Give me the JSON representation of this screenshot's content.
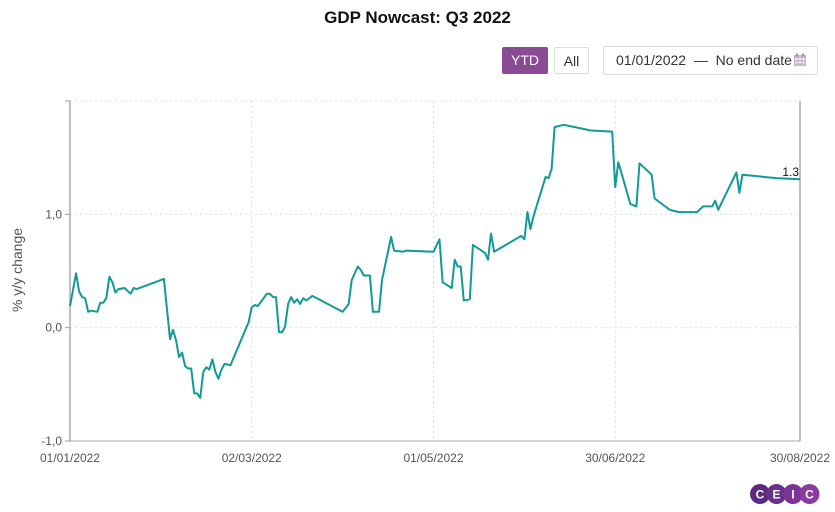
{
  "chart_data": {
    "type": "line",
    "title": "GDP Nowcast: Q3 2022",
    "ylabel": "% y/y change",
    "xlabel": "",
    "ylim": [
      -1,
      2
    ],
    "xlim": [
      "2022-01-01",
      "2022-08-30"
    ],
    "x_ticks": [
      "01/01/2022",
      "02/03/2022",
      "01/05/2022",
      "30/06/2022",
      "30/08/2022"
    ],
    "x_tick_dates": [
      "2022-01-01",
      "2022-03-02",
      "2022-05-01",
      "2022-06-30",
      "2022-08-30"
    ],
    "y_ticks": [
      {
        "value": -1,
        "label": "-1,0"
      },
      {
        "value": 0,
        "label": "0,0"
      },
      {
        "value": 1,
        "label": "1,0"
      }
    ],
    "grid": true,
    "line_color": "#129a94",
    "last_value_label": "1.3",
    "series": [
      {
        "points": [
          [
            "2022-01-01",
            0.19
          ],
          [
            "2022-01-03",
            0.48
          ],
          [
            "2022-01-04",
            0.32
          ],
          [
            "2022-01-05",
            0.27
          ],
          [
            "2022-01-06",
            0.26
          ],
          [
            "2022-01-07",
            0.14
          ],
          [
            "2022-01-08",
            0.15
          ],
          [
            "2022-01-10",
            0.14
          ],
          [
            "2022-01-11",
            0.22
          ],
          [
            "2022-01-12",
            0.22
          ],
          [
            "2022-01-13",
            0.26
          ],
          [
            "2022-01-14",
            0.45
          ],
          [
            "2022-01-15",
            0.4
          ],
          [
            "2022-01-16",
            0.31
          ],
          [
            "2022-01-17",
            0.34
          ],
          [
            "2022-01-19",
            0.35
          ],
          [
            "2022-01-21",
            0.3
          ],
          [
            "2022-01-22",
            0.35
          ],
          [
            "2022-01-23",
            0.34
          ],
          [
            "2022-02-01",
            0.43
          ],
          [
            "2022-02-03",
            -0.1
          ],
          [
            "2022-02-04",
            -0.02
          ],
          [
            "2022-02-05",
            -0.11
          ],
          [
            "2022-02-06",
            -0.26
          ],
          [
            "2022-02-07",
            -0.22
          ],
          [
            "2022-02-08",
            -0.34
          ],
          [
            "2022-02-09",
            -0.36
          ],
          [
            "2022-02-10",
            -0.36
          ],
          [
            "2022-02-11",
            -0.58
          ],
          [
            "2022-02-12",
            -0.58
          ],
          [
            "2022-02-13",
            -0.62
          ],
          [
            "2022-02-14",
            -0.39
          ],
          [
            "2022-02-15",
            -0.35
          ],
          [
            "2022-02-16",
            -0.37
          ],
          [
            "2022-02-17",
            -0.28
          ],
          [
            "2022-02-18",
            -0.39
          ],
          [
            "2022-02-19",
            -0.45
          ],
          [
            "2022-02-20",
            -0.37
          ],
          [
            "2022-02-21",
            -0.32
          ],
          [
            "2022-02-23",
            -0.33
          ],
          [
            "2022-03-01",
            0.05
          ],
          [
            "2022-03-02",
            0.18
          ],
          [
            "2022-03-03",
            0.2
          ],
          [
            "2022-03-04",
            0.19
          ],
          [
            "2022-03-07",
            0.3
          ],
          [
            "2022-03-08",
            0.3
          ],
          [
            "2022-03-09",
            0.27
          ],
          [
            "2022-03-10",
            0.27
          ],
          [
            "2022-03-11",
            -0.04
          ],
          [
            "2022-03-12",
            -0.04
          ],
          [
            "2022-03-13",
            0.01
          ],
          [
            "2022-03-14",
            0.21
          ],
          [
            "2022-03-15",
            0.27
          ],
          [
            "2022-03-16",
            0.22
          ],
          [
            "2022-03-17",
            0.25
          ],
          [
            "2022-03-18",
            0.21
          ],
          [
            "2022-03-19",
            0.26
          ],
          [
            "2022-03-20",
            0.24
          ],
          [
            "2022-03-22",
            0.28
          ],
          [
            "2022-04-01",
            0.14
          ],
          [
            "2022-04-03",
            0.21
          ],
          [
            "2022-04-04",
            0.42
          ],
          [
            "2022-04-06",
            0.54
          ],
          [
            "2022-04-07",
            0.51
          ],
          [
            "2022-04-08",
            0.46
          ],
          [
            "2022-04-10",
            0.46
          ],
          [
            "2022-04-11",
            0.14
          ],
          [
            "2022-04-13",
            0.14
          ],
          [
            "2022-04-14",
            0.42
          ],
          [
            "2022-04-17",
            0.8
          ],
          [
            "2022-04-18",
            0.68
          ],
          [
            "2022-04-21",
            0.67
          ],
          [
            "2022-04-22",
            0.68
          ],
          [
            "2022-05-01",
            0.67
          ],
          [
            "2022-05-03",
            0.78
          ],
          [
            "2022-05-04",
            0.4
          ],
          [
            "2022-05-07",
            0.35
          ],
          [
            "2022-05-08",
            0.6
          ],
          [
            "2022-05-09",
            0.54
          ],
          [
            "2022-05-10",
            0.54
          ],
          [
            "2022-05-11",
            0.24
          ],
          [
            "2022-05-13",
            0.25
          ],
          [
            "2022-05-14",
            0.73
          ],
          [
            "2022-05-18",
            0.66
          ],
          [
            "2022-05-19",
            0.6
          ],
          [
            "2022-05-20",
            0.83
          ],
          [
            "2022-05-21",
            0.67
          ],
          [
            "2022-05-30",
            0.81
          ],
          [
            "2022-05-31",
            0.78
          ],
          [
            "2022-06-01",
            1.02
          ],
          [
            "2022-06-02",
            0.87
          ],
          [
            "2022-06-03",
            0.98
          ],
          [
            "2022-06-07",
            1.33
          ],
          [
            "2022-06-08",
            1.32
          ],
          [
            "2022-06-09",
            1.4
          ],
          [
            "2022-06-10",
            1.77
          ],
          [
            "2022-06-13",
            1.79
          ],
          [
            "2022-06-22",
            1.74
          ],
          [
            "2022-06-29",
            1.73
          ],
          [
            "2022-06-30",
            1.24
          ],
          [
            "2022-07-01",
            1.46
          ],
          [
            "2022-07-05",
            1.09
          ],
          [
            "2022-07-07",
            1.07
          ],
          [
            "2022-07-08",
            1.45
          ],
          [
            "2022-07-12",
            1.35
          ],
          [
            "2022-07-13",
            1.14
          ],
          [
            "2022-07-18",
            1.04
          ],
          [
            "2022-07-21",
            1.02
          ],
          [
            "2022-07-27",
            1.02
          ],
          [
            "2022-07-29",
            1.07
          ],
          [
            "2022-08-01",
            1.07
          ],
          [
            "2022-08-02",
            1.12
          ],
          [
            "2022-08-03",
            1.04
          ],
          [
            "2022-08-09",
            1.37
          ],
          [
            "2022-08-10",
            1.19
          ],
          [
            "2022-08-11",
            1.35
          ],
          [
            "2022-08-22",
            1.32
          ],
          [
            "2022-08-30",
            1.31
          ]
        ]
      }
    ]
  },
  "controls": {
    "ytd_label": "YTD",
    "all_label": "All",
    "active": "YTD",
    "accent_color": "#8a4a94",
    "date_range": "01/01/2022  —  No end date",
    "calendar_icon": "calendar-icon"
  },
  "logo": {
    "text": "CEIC",
    "letters": [
      "C",
      "E",
      "I",
      "C"
    ]
  }
}
